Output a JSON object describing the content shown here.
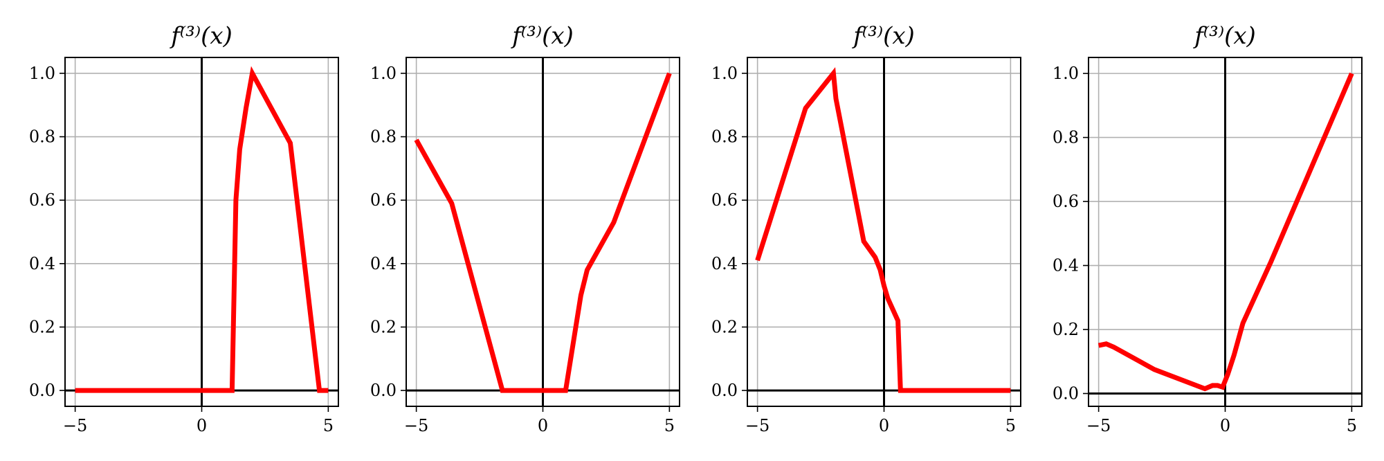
{
  "chart_data": [
    {
      "type": "line",
      "title": "f⁽³⁾(x)",
      "xlabel": "",
      "ylabel": "",
      "xlim": [
        -5.4,
        5.4
      ],
      "ylim": [
        -0.05,
        1.05
      ],
      "xticks": [
        -5,
        0,
        5
      ],
      "yticks": [
        0.0,
        0.2,
        0.4,
        0.6,
        0.8,
        1.0
      ],
      "xtick_labels": [
        "−5",
        "0",
        "5"
      ],
      "ytick_labels": [
        "0.0",
        "0.2",
        "0.4",
        "0.6",
        "0.8",
        "1.0"
      ],
      "grid": true,
      "line_color": "#ff0000",
      "series": [
        {
          "x": [
            -5.0,
            1.2,
            1.35,
            1.5,
            1.75,
            2.0,
            3.5,
            4.65,
            5.0
          ],
          "y": [
            0.0,
            0.0,
            0.6,
            0.76,
            0.89,
            1.0,
            0.78,
            0.0,
            0.0
          ]
        }
      ]
    },
    {
      "type": "line",
      "title": "f⁽³⁾(x)",
      "xlabel": "",
      "ylabel": "",
      "xlim": [
        -5.4,
        5.4
      ],
      "ylim": [
        -0.05,
        1.05
      ],
      "xticks": [
        -5,
        0,
        5
      ],
      "yticks": [
        0.0,
        0.2,
        0.4,
        0.6,
        0.8,
        1.0
      ],
      "xtick_labels": [
        "−5",
        "0",
        "5"
      ],
      "ytick_labels": [
        "0.0",
        "0.2",
        "0.4",
        "0.6",
        "0.8",
        "1.0"
      ],
      "grid": true,
      "line_color": "#ff0000",
      "series": [
        {
          "x": [
            -5.0,
            -3.6,
            -1.6,
            0.9,
            1.5,
            1.75,
            2.8,
            5.0
          ],
          "y": [
            0.79,
            0.59,
            0.0,
            0.0,
            0.3,
            0.38,
            0.53,
            1.0
          ]
        }
      ]
    },
    {
      "type": "line",
      "title": "f⁽³⁾(x)",
      "xlabel": "",
      "ylabel": "",
      "xlim": [
        -5.4,
        5.4
      ],
      "ylim": [
        -0.05,
        1.05
      ],
      "xticks": [
        -5,
        0,
        5
      ],
      "yticks": [
        0.0,
        0.2,
        0.4,
        0.6,
        0.8,
        1.0
      ],
      "xtick_labels": [
        "−5",
        "0",
        "5"
      ],
      "ytick_labels": [
        "0.0",
        "0.2",
        "0.4",
        "0.6",
        "0.8",
        "1.0"
      ],
      "grid": true,
      "line_color": "#ff0000",
      "series": [
        {
          "x": [
            -5.0,
            -3.1,
            -2.0,
            -1.9,
            -0.8,
            -0.35,
            -0.15,
            0.0,
            0.15,
            0.55,
            0.65,
            5.0
          ],
          "y": [
            0.41,
            0.89,
            1.0,
            0.92,
            0.47,
            0.42,
            0.38,
            0.33,
            0.29,
            0.22,
            0.0,
            0.0
          ]
        }
      ]
    },
    {
      "type": "line",
      "title": "f⁽³⁾(x)",
      "xlabel": "",
      "ylabel": "",
      "xlim": [
        -5.4,
        5.4
      ],
      "ylim": [
        -0.04,
        1.05
      ],
      "xticks": [
        -5,
        0,
        5
      ],
      "yticks": [
        0.0,
        0.2,
        0.4,
        0.6,
        0.8,
        1.0
      ],
      "xtick_labels": [
        "−5",
        "0",
        "5"
      ],
      "ytick_labels": [
        "0.0",
        "0.2",
        "0.4",
        "0.6",
        "0.8",
        "1.0"
      ],
      "grid": true,
      "line_color": "#ff0000",
      "series": [
        {
          "x": [
            -5.0,
            -4.7,
            -4.4,
            -2.8,
            -0.8,
            -0.5,
            -0.3,
            -0.1,
            0.1,
            0.35,
            0.7,
            1.8,
            5.0
          ],
          "y": [
            0.15,
            0.155,
            0.145,
            0.075,
            0.015,
            0.025,
            0.025,
            0.02,
            0.06,
            0.12,
            0.22,
            0.41,
            1.0
          ]
        }
      ]
    }
  ]
}
